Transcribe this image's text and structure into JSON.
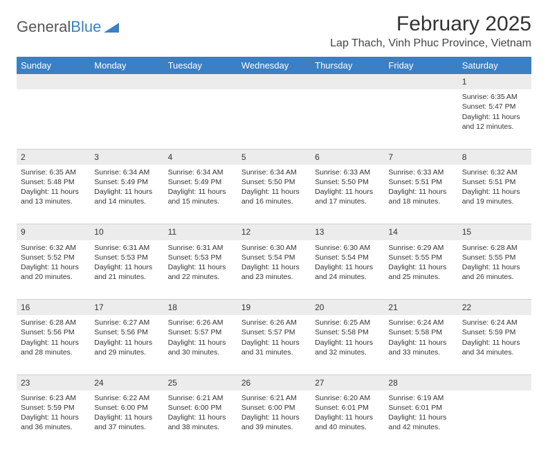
{
  "brand": {
    "part1": "General",
    "part2": "Blue"
  },
  "title": "February 2025",
  "location": "Lap Thach, Vinh Phuc Province, Vietnam",
  "colors": {
    "header_bg": "#3b7fc4",
    "header_text": "#ffffff",
    "daynum_bg": "#ececec",
    "body_text": "#333333",
    "page_bg": "#ffffff"
  },
  "day_headers": [
    "Sunday",
    "Monday",
    "Tuesday",
    "Wednesday",
    "Thursday",
    "Friday",
    "Saturday"
  ],
  "weeks": [
    [
      {
        "num": "",
        "sunrise": "",
        "sunset": "",
        "daylight": ""
      },
      {
        "num": "",
        "sunrise": "",
        "sunset": "",
        "daylight": ""
      },
      {
        "num": "",
        "sunrise": "",
        "sunset": "",
        "daylight": ""
      },
      {
        "num": "",
        "sunrise": "",
        "sunset": "",
        "daylight": ""
      },
      {
        "num": "",
        "sunrise": "",
        "sunset": "",
        "daylight": ""
      },
      {
        "num": "",
        "sunrise": "",
        "sunset": "",
        "daylight": ""
      },
      {
        "num": "1",
        "sunrise": "Sunrise: 6:35 AM",
        "sunset": "Sunset: 5:47 PM",
        "daylight": "Daylight: 11 hours and 12 minutes."
      }
    ],
    [
      {
        "num": "2",
        "sunrise": "Sunrise: 6:35 AM",
        "sunset": "Sunset: 5:48 PM",
        "daylight": "Daylight: 11 hours and 13 minutes."
      },
      {
        "num": "3",
        "sunrise": "Sunrise: 6:34 AM",
        "sunset": "Sunset: 5:49 PM",
        "daylight": "Daylight: 11 hours and 14 minutes."
      },
      {
        "num": "4",
        "sunrise": "Sunrise: 6:34 AM",
        "sunset": "Sunset: 5:49 PM",
        "daylight": "Daylight: 11 hours and 15 minutes."
      },
      {
        "num": "5",
        "sunrise": "Sunrise: 6:34 AM",
        "sunset": "Sunset: 5:50 PM",
        "daylight": "Daylight: 11 hours and 16 minutes."
      },
      {
        "num": "6",
        "sunrise": "Sunrise: 6:33 AM",
        "sunset": "Sunset: 5:50 PM",
        "daylight": "Daylight: 11 hours and 17 minutes."
      },
      {
        "num": "7",
        "sunrise": "Sunrise: 6:33 AM",
        "sunset": "Sunset: 5:51 PM",
        "daylight": "Daylight: 11 hours and 18 minutes."
      },
      {
        "num": "8",
        "sunrise": "Sunrise: 6:32 AM",
        "sunset": "Sunset: 5:51 PM",
        "daylight": "Daylight: 11 hours and 19 minutes."
      }
    ],
    [
      {
        "num": "9",
        "sunrise": "Sunrise: 6:32 AM",
        "sunset": "Sunset: 5:52 PM",
        "daylight": "Daylight: 11 hours and 20 minutes."
      },
      {
        "num": "10",
        "sunrise": "Sunrise: 6:31 AM",
        "sunset": "Sunset: 5:53 PM",
        "daylight": "Daylight: 11 hours and 21 minutes."
      },
      {
        "num": "11",
        "sunrise": "Sunrise: 6:31 AM",
        "sunset": "Sunset: 5:53 PM",
        "daylight": "Daylight: 11 hours and 22 minutes."
      },
      {
        "num": "12",
        "sunrise": "Sunrise: 6:30 AM",
        "sunset": "Sunset: 5:54 PM",
        "daylight": "Daylight: 11 hours and 23 minutes."
      },
      {
        "num": "13",
        "sunrise": "Sunrise: 6:30 AM",
        "sunset": "Sunset: 5:54 PM",
        "daylight": "Daylight: 11 hours and 24 minutes."
      },
      {
        "num": "14",
        "sunrise": "Sunrise: 6:29 AM",
        "sunset": "Sunset: 5:55 PM",
        "daylight": "Daylight: 11 hours and 25 minutes."
      },
      {
        "num": "15",
        "sunrise": "Sunrise: 6:28 AM",
        "sunset": "Sunset: 5:55 PM",
        "daylight": "Daylight: 11 hours and 26 minutes."
      }
    ],
    [
      {
        "num": "16",
        "sunrise": "Sunrise: 6:28 AM",
        "sunset": "Sunset: 5:56 PM",
        "daylight": "Daylight: 11 hours and 28 minutes."
      },
      {
        "num": "17",
        "sunrise": "Sunrise: 6:27 AM",
        "sunset": "Sunset: 5:56 PM",
        "daylight": "Daylight: 11 hours and 29 minutes."
      },
      {
        "num": "18",
        "sunrise": "Sunrise: 6:26 AM",
        "sunset": "Sunset: 5:57 PM",
        "daylight": "Daylight: 11 hours and 30 minutes."
      },
      {
        "num": "19",
        "sunrise": "Sunrise: 6:26 AM",
        "sunset": "Sunset: 5:57 PM",
        "daylight": "Daylight: 11 hours and 31 minutes."
      },
      {
        "num": "20",
        "sunrise": "Sunrise: 6:25 AM",
        "sunset": "Sunset: 5:58 PM",
        "daylight": "Daylight: 11 hours and 32 minutes."
      },
      {
        "num": "21",
        "sunrise": "Sunrise: 6:24 AM",
        "sunset": "Sunset: 5:58 PM",
        "daylight": "Daylight: 11 hours and 33 minutes."
      },
      {
        "num": "22",
        "sunrise": "Sunrise: 6:24 AM",
        "sunset": "Sunset: 5:59 PM",
        "daylight": "Daylight: 11 hours and 34 minutes."
      }
    ],
    [
      {
        "num": "23",
        "sunrise": "Sunrise: 6:23 AM",
        "sunset": "Sunset: 5:59 PM",
        "daylight": "Daylight: 11 hours and 36 minutes."
      },
      {
        "num": "24",
        "sunrise": "Sunrise: 6:22 AM",
        "sunset": "Sunset: 6:00 PM",
        "daylight": "Daylight: 11 hours and 37 minutes."
      },
      {
        "num": "25",
        "sunrise": "Sunrise: 6:21 AM",
        "sunset": "Sunset: 6:00 PM",
        "daylight": "Daylight: 11 hours and 38 minutes."
      },
      {
        "num": "26",
        "sunrise": "Sunrise: 6:21 AM",
        "sunset": "Sunset: 6:00 PM",
        "daylight": "Daylight: 11 hours and 39 minutes."
      },
      {
        "num": "27",
        "sunrise": "Sunrise: 6:20 AM",
        "sunset": "Sunset: 6:01 PM",
        "daylight": "Daylight: 11 hours and 40 minutes."
      },
      {
        "num": "28",
        "sunrise": "Sunrise: 6:19 AM",
        "sunset": "Sunset: 6:01 PM",
        "daylight": "Daylight: 11 hours and 42 minutes."
      },
      {
        "num": "",
        "sunrise": "",
        "sunset": "",
        "daylight": ""
      }
    ]
  ]
}
